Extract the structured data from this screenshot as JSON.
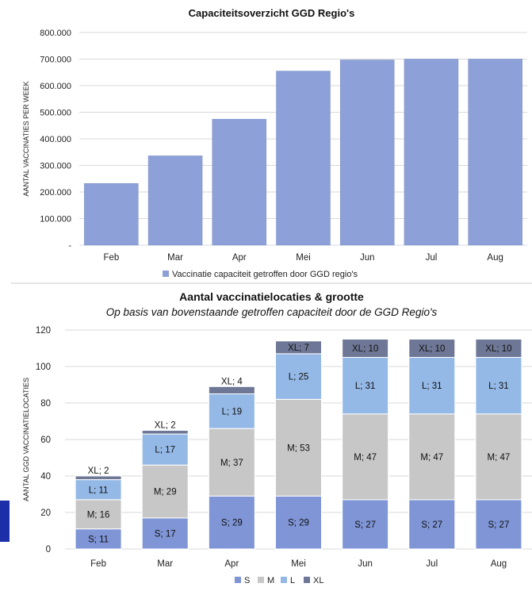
{
  "colors": {
    "bar_top": "#8ea0d8",
    "S": "#7f95d6",
    "M": "#c7c7c7",
    "L": "#95b9e6",
    "XL": "#6e7896",
    "grid": "#d9d9d9",
    "sidebar_block": "#1d2fa8"
  },
  "chart_data": [
    {
      "type": "bar",
      "title": "Capaciteitsoverzicht GGD Regio's",
      "ylabel": "AANTAL VACCINATIES PER WEEK",
      "xlabel": "",
      "categories": [
        "Feb",
        "Mar",
        "Apr",
        "Mei",
        "Jun",
        "Jul",
        "Aug"
      ],
      "series": [
        {
          "name": "Vaccinatie capaciteit getroffen door GGD regio's",
          "values": [
            232000,
            336000,
            474000,
            655000,
            697000,
            700000,
            700000
          ]
        }
      ],
      "ylim": [
        0,
        800000
      ],
      "yticks": [
        "-",
        "100.000",
        "200.000",
        "300.000",
        "400.000",
        "500.000",
        "600.000",
        "700.000",
        "800.000"
      ],
      "grid": true,
      "legend_position": "bottom"
    },
    {
      "type": "bar",
      "stacked": true,
      "title": "Aantal vaccinatielocaties & grootte",
      "subtitle": "Op basis van bovenstaande getroffen capaciteit door de GGD Regio's",
      "ylabel": "AANTAL GGD VACCINATIELOCATIES",
      "xlabel": "",
      "categories": [
        "Feb",
        "Mar",
        "Apr",
        "Mei",
        "Jun",
        "Jul",
        "Aug"
      ],
      "series": [
        {
          "name": "S",
          "values": [
            11,
            17,
            29,
            29,
            27,
            27,
            27
          ],
          "labels": [
            "S; 11",
            "S; 17",
            "S; 29",
            "S; 29",
            "S; 27",
            "S; 27",
            "S; 27"
          ]
        },
        {
          "name": "M",
          "values": [
            16,
            29,
            37,
            53,
            47,
            47,
            47
          ],
          "labels": [
            "M; 16",
            "M; 29",
            "M; 37",
            "M; 53",
            "M; 47",
            "M; 47",
            "M; 47"
          ]
        },
        {
          "name": "L",
          "values": [
            11,
            17,
            19,
            25,
            31,
            31,
            31
          ],
          "labels": [
            "L; 11",
            "L; 17",
            "L; 19",
            "L; 25",
            "L; 31",
            "L; 31",
            "L; 31"
          ]
        },
        {
          "name": "XL",
          "values": [
            2,
            2,
            4,
            7,
            10,
            10,
            10
          ],
          "labels": [
            "XL; 2",
            "XL; 2",
            "XL; 4",
            "XL; 7",
            "XL; 10",
            "XL; 10",
            "XL; 10"
          ]
        }
      ],
      "ylim": [
        0,
        120
      ],
      "yticks": [
        "0",
        "20",
        "40",
        "60",
        "80",
        "100",
        "120"
      ],
      "grid": true,
      "legend_position": "bottom"
    }
  ]
}
